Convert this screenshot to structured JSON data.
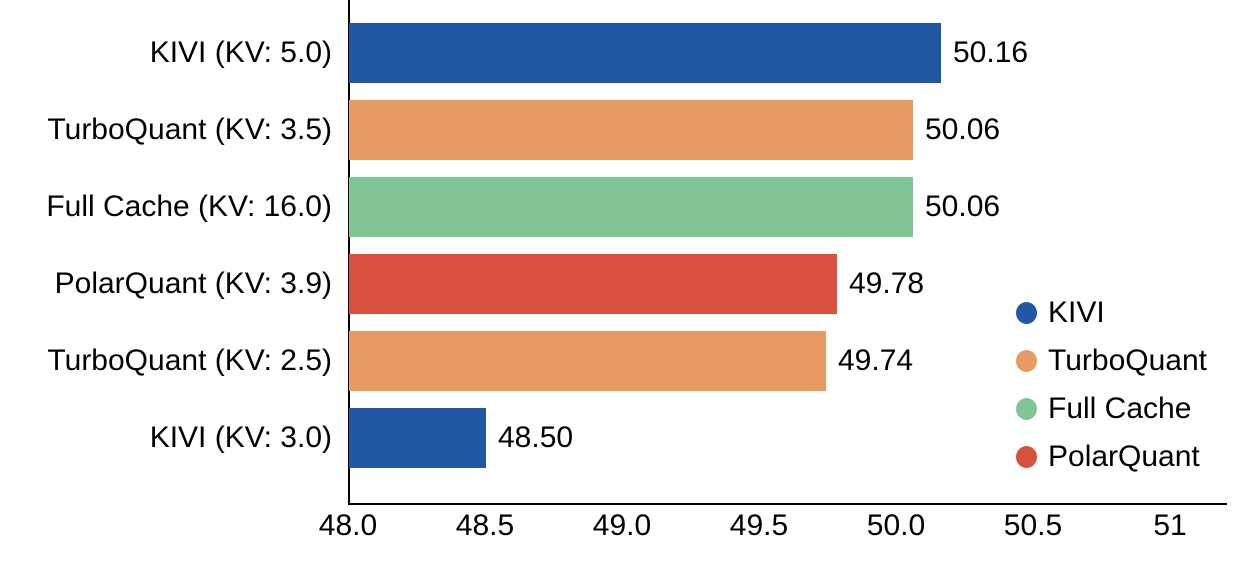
{
  "chart_data": {
    "type": "bar",
    "orientation": "horizontal",
    "title": "",
    "xlabel": "",
    "ylabel": "",
    "xlim": [
      48.0,
      51.2
    ],
    "grid": false,
    "legend_position": "center-right",
    "axis_color": "#000000",
    "text_color": "#000000",
    "categories": [
      "KIVI (KV: 5.0)",
      "TurboQuant (KV: 3.5)",
      "Full Cache (KV: 16.0)",
      "PolarQuant (KV: 3.9)",
      "TurboQuant (KV: 2.5)",
      "KIVI (KV: 3.0)"
    ],
    "values": [
      50.16,
      50.06,
      50.06,
      49.78,
      49.74,
      48.5
    ],
    "bars": [
      {
        "category": "KIVI (KV: 5.0)",
        "value": 50.16,
        "label": "50.16",
        "series": "KIVI",
        "color": "#2257A6"
      },
      {
        "category": "TurboQuant (KV: 3.5)",
        "value": 50.06,
        "label": "50.06",
        "series": "TurboQuant",
        "color": "#E89A63"
      },
      {
        "category": "Full Cache (KV: 16.0)",
        "value": 50.06,
        "label": "50.06",
        "series": "Full Cache",
        "color": "#82C594"
      },
      {
        "category": "PolarQuant (KV: 3.9)",
        "value": 49.78,
        "label": "49.78",
        "series": "PolarQuant",
        "color": "#D8513F"
      },
      {
        "category": "TurboQuant (KV: 2.5)",
        "value": 49.74,
        "label": "49.74",
        "series": "TurboQuant",
        "color": "#E89A63"
      },
      {
        "category": "KIVI (KV: 3.0)",
        "value": 48.5,
        "label": "48.50",
        "series": "KIVI",
        "color": "#2257A6"
      }
    ],
    "xticks": [
      {
        "label": "48.0",
        "value": 48.0
      },
      {
        "label": "48.5",
        "value": 48.5
      },
      {
        "label": "49.0",
        "value": 49.0
      },
      {
        "label": "49.5",
        "value": 49.5
      },
      {
        "label": "50.0",
        "value": 50.0
      },
      {
        "label": "50.5",
        "value": 50.5
      },
      {
        "label": "51",
        "value": 51.0
      }
    ],
    "legend": [
      {
        "label": "KIVI",
        "color": "#2257A6"
      },
      {
        "label": "TurboQuant",
        "color": "#E89A63"
      },
      {
        "label": "Full Cache",
        "color": "#82C594"
      },
      {
        "label": "PolarQuant",
        "color": "#D8513F"
      }
    ]
  }
}
